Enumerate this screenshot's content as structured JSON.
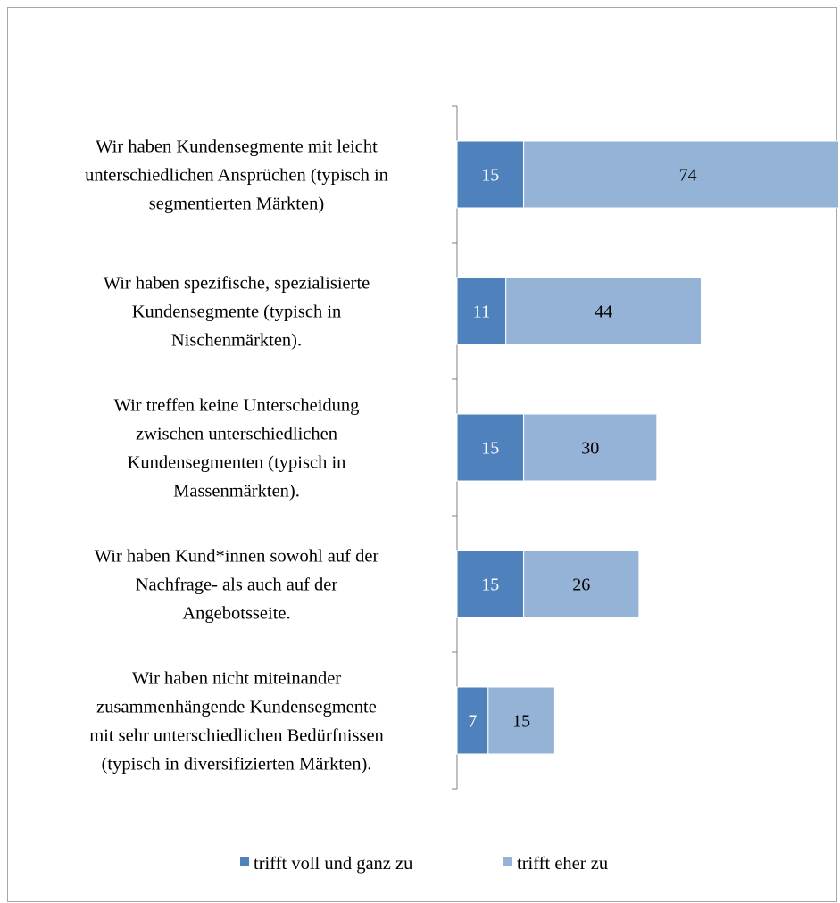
{
  "chart_data": {
    "type": "bar",
    "orientation": "horizontal",
    "stacked": true,
    "categories": [
      [
        "Wir haben Kundensegmente mit leicht",
        "unterschiedlichen Ansprüchen (typisch in",
        "segmentierten Märkten)"
      ],
      [
        "Wir haben spezifische, spezialisierte",
        "Kundensegmente (typisch in",
        "Nischenmärkten)."
      ],
      [
        "Wir treffen keine Unterscheidung",
        "zwischen unterschiedlichen",
        "Kundensegmenten (typisch in",
        "Massenmärkten)."
      ],
      [
        "Wir haben Kund*innen sowohl auf der",
        "Nachfrage- als auch auf der",
        "Angebotsseite."
      ],
      [
        "Wir haben nicht miteinander",
        "zusammenhängende Kundensegmente",
        "mit sehr unterschiedlichen Bedürfnissen",
        "(typisch in diversifizierten Märkten)."
      ]
    ],
    "series": [
      {
        "name": "trifft voll und ganz zu",
        "color": "#4f81bd",
        "label_color": "#ffffff",
        "values": [
          15,
          11,
          15,
          15,
          7
        ]
      },
      {
        "name": "trifft eher zu",
        "color": "#95b3d7",
        "label_color": "#000000",
        "values": [
          74,
          44,
          30,
          26,
          15
        ]
      }
    ],
    "xlim": [
      0,
      100
    ],
    "data_labels": true,
    "grid": false,
    "legend_position": "bottom"
  }
}
